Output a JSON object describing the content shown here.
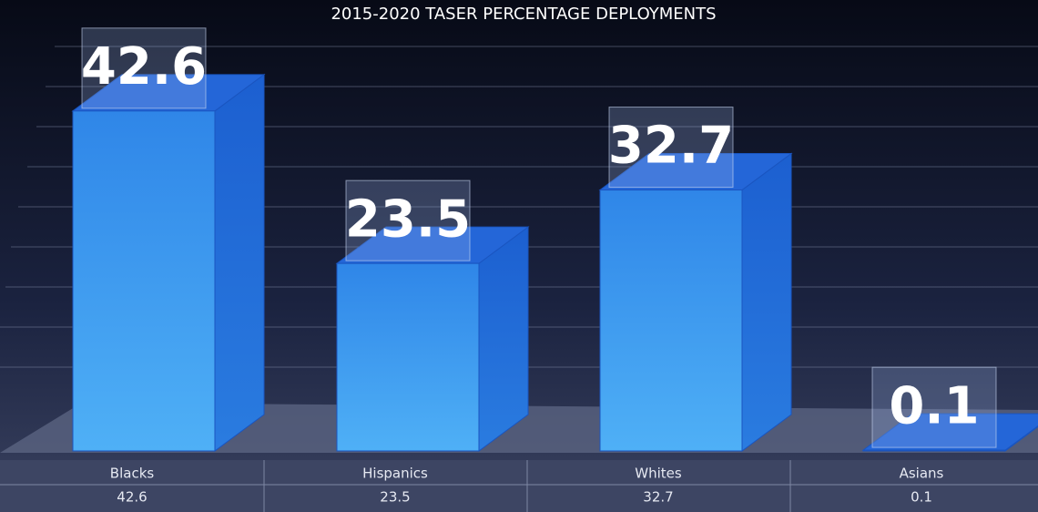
{
  "chart_data": {
    "type": "bar3d",
    "title": "2015-2020 TASER PERCENTAGE DEPLOYMENTS",
    "categories": [
      "Blacks",
      "Hispanics",
      "Whites",
      "Asians"
    ],
    "values": [
      42.6,
      23.5,
      32.7,
      0.1
    ],
    "color": "#2f86e8",
    "ylim": [
      0,
      50
    ]
  }
}
